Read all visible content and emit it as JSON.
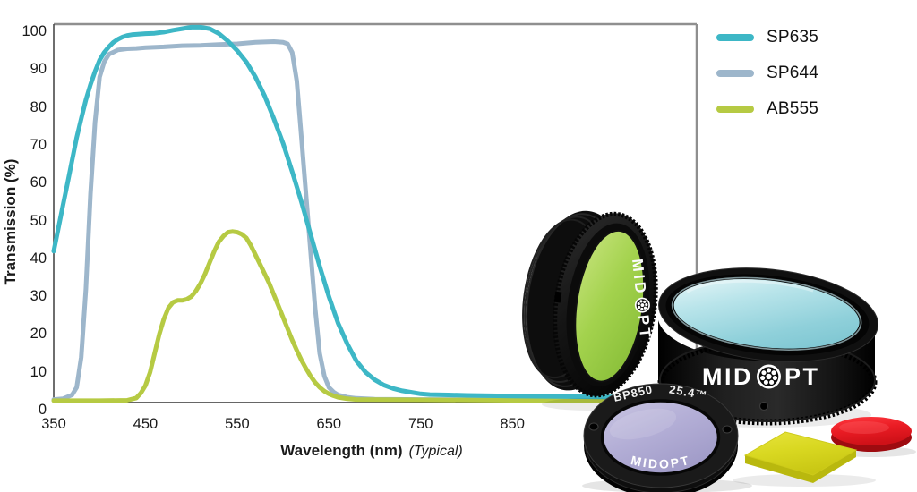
{
  "page": {
    "background": "#ffffff"
  },
  "chart_data": {
    "type": "line",
    "title": "",
    "xlabel": "Wavelength (nm)",
    "xlabel_note": "(Typical)",
    "ylabel": "Transmission (%)",
    "xlim": [
      350,
      1040
    ],
    "ylim": [
      0,
      102
    ],
    "x_ticks": [
      350,
      450,
      550,
      650,
      750,
      850
    ],
    "y_ticks": [
      0,
      10,
      20,
      30,
      40,
      50,
      60,
      70,
      80,
      90,
      100
    ],
    "grid": false,
    "legend_position": "top-right",
    "series": [
      {
        "name": "SP635",
        "color": "#3db7c6",
        "points": [
          [
            350,
            40
          ],
          [
            355,
            46
          ],
          [
            360,
            52
          ],
          [
            365,
            58
          ],
          [
            370,
            64
          ],
          [
            375,
            70
          ],
          [
            380,
            75
          ],
          [
            385,
            80
          ],
          [
            390,
            84
          ],
          [
            395,
            87.5
          ],
          [
            400,
            90.5
          ],
          [
            405,
            92.5
          ],
          [
            410,
            94
          ],
          [
            415,
            95.2
          ],
          [
            420,
            96
          ],
          [
            425,
            96.6
          ],
          [
            430,
            97
          ],
          [
            435,
            97.2
          ],
          [
            440,
            97.3
          ],
          [
            450,
            97.5
          ],
          [
            460,
            97.6
          ],
          [
            470,
            97.9
          ],
          [
            480,
            98.4
          ],
          [
            490,
            98.8
          ],
          [
            500,
            99.2
          ],
          [
            510,
            99.2
          ],
          [
            520,
            98.8
          ],
          [
            530,
            97.5
          ],
          [
            540,
            95.5
          ],
          [
            550,
            93
          ],
          [
            560,
            90
          ],
          [
            570,
            86
          ],
          [
            580,
            81
          ],
          [
            590,
            75
          ],
          [
            600,
            68.5
          ],
          [
            610,
            61
          ],
          [
            620,
            53
          ],
          [
            630,
            44.5
          ],
          [
            640,
            36
          ],
          [
            650,
            28
          ],
          [
            660,
            21
          ],
          [
            670,
            15.5
          ],
          [
            680,
            11
          ],
          [
            690,
            8
          ],
          [
            700,
            6
          ],
          [
            710,
            4.6
          ],
          [
            720,
            3.7
          ],
          [
            730,
            3.1
          ],
          [
            740,
            2.7
          ],
          [
            750,
            2.3
          ],
          [
            760,
            2.1
          ],
          [
            780,
            2
          ],
          [
            800,
            1.9
          ],
          [
            850,
            1.7
          ],
          [
            900,
            1.6
          ],
          [
            950,
            1.5
          ],
          [
            1000,
            1.5
          ],
          [
            1040,
            1.4
          ]
        ]
      },
      {
        "name": "SP644",
        "color": "#9db6cb",
        "points": [
          [
            350,
            0.8
          ],
          [
            360,
            1
          ],
          [
            370,
            2
          ],
          [
            375,
            4
          ],
          [
            380,
            12
          ],
          [
            385,
            30
          ],
          [
            390,
            55
          ],
          [
            395,
            74
          ],
          [
            400,
            86
          ],
          [
            405,
            90
          ],
          [
            410,
            92
          ],
          [
            420,
            93.2
          ],
          [
            430,
            93.5
          ],
          [
            440,
            93.6
          ],
          [
            450,
            93.8
          ],
          [
            470,
            94
          ],
          [
            490,
            94.3
          ],
          [
            510,
            94.4
          ],
          [
            530,
            94.6
          ],
          [
            550,
            94.8
          ],
          [
            570,
            95.2
          ],
          [
            590,
            95.4
          ],
          [
            600,
            95.2
          ],
          [
            605,
            94.8
          ],
          [
            610,
            92.5
          ],
          [
            615,
            85
          ],
          [
            620,
            70
          ],
          [
            625,
            55
          ],
          [
            630,
            40
          ],
          [
            635,
            25
          ],
          [
            640,
            13
          ],
          [
            645,
            7
          ],
          [
            650,
            4
          ],
          [
            655,
            2.8
          ],
          [
            660,
            2
          ],
          [
            670,
            1.4
          ],
          [
            680,
            1.1
          ],
          [
            700,
            0.9
          ],
          [
            750,
            0.8
          ],
          [
            800,
            0.8
          ],
          [
            900,
            0.8
          ],
          [
            1000,
            0.8
          ],
          [
            1040,
            0.8
          ]
        ]
      },
      {
        "name": "AB555",
        "color": "#b6ca43",
        "points": [
          [
            350,
            0.5
          ],
          [
            400,
            0.5
          ],
          [
            430,
            0.6
          ],
          [
            440,
            1.2
          ],
          [
            445,
            2.5
          ],
          [
            450,
            4.5
          ],
          [
            455,
            8
          ],
          [
            460,
            13
          ],
          [
            465,
            18
          ],
          [
            470,
            22
          ],
          [
            475,
            25
          ],
          [
            480,
            26.5
          ],
          [
            485,
            27
          ],
          [
            490,
            27
          ],
          [
            495,
            27.3
          ],
          [
            500,
            28
          ],
          [
            505,
            29.5
          ],
          [
            510,
            31.5
          ],
          [
            515,
            34
          ],
          [
            520,
            37
          ],
          [
            525,
            40
          ],
          [
            530,
            42.5
          ],
          [
            535,
            44
          ],
          [
            540,
            45
          ],
          [
            545,
            45.2
          ],
          [
            550,
            45
          ],
          [
            555,
            44.5
          ],
          [
            560,
            43.5
          ],
          [
            565,
            41.5
          ],
          [
            570,
            39
          ],
          [
            575,
            36.5
          ],
          [
            580,
            34
          ],
          [
            585,
            31.5
          ],
          [
            590,
            28.5
          ],
          [
            595,
            25.5
          ],
          [
            600,
            22.5
          ],
          [
            605,
            19.5
          ],
          [
            610,
            16.5
          ],
          [
            615,
            13.8
          ],
          [
            620,
            11.2
          ],
          [
            625,
            9
          ],
          [
            630,
            7
          ],
          [
            635,
            5.3
          ],
          [
            640,
            4
          ],
          [
            645,
            3
          ],
          [
            650,
            2.3
          ],
          [
            655,
            1.8
          ],
          [
            660,
            1.4
          ],
          [
            670,
            1
          ],
          [
            680,
            0.8
          ],
          [
            750,
            0.7
          ],
          [
            850,
            0.6
          ],
          [
            950,
            0.6
          ],
          [
            1040,
            0.6
          ]
        ]
      }
    ]
  },
  "products": {
    "brand_left": "MID",
    "brand_right": "PT",
    "small_ring_model": "BP850",
    "small_ring_size": "25.4™",
    "small_ring_brand": "MIDOPT"
  }
}
